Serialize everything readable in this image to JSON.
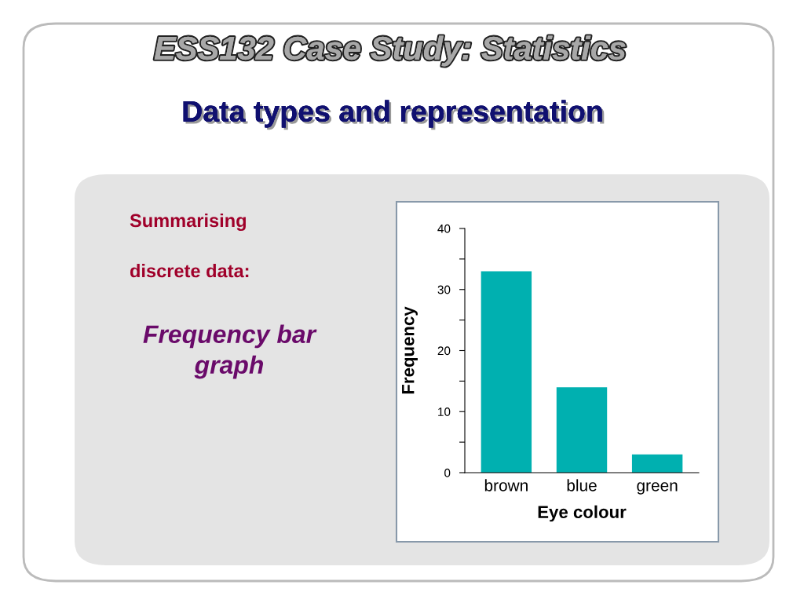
{
  "chart_data": {
    "type": "bar",
    "title": "ESS132 Case Study: Statistics",
    "subtitle": "Data types and representation",
    "annotations": [
      "Summarising",
      "discrete data:",
      "Frequency bar\ngraph"
    ],
    "categories": [
      "brown",
      "blue",
      "green"
    ],
    "values": [
      33,
      14,
      3
    ],
    "color": "#00b0b0",
    "xlabel": "Eye colour",
    "ylabel": "Frequency",
    "ylim": [
      0,
      40
    ],
    "yticks": [
      0,
      {
        "value": 5,
        "label": null
      },
      10,
      {
        "value": 15,
        "label": null
      },
      20,
      {
        "value": 25,
        "label": null
      },
      30,
      {
        "value": 35,
        "label": null
      },
      40
    ],
    "grid": false,
    "legend": false
  }
}
